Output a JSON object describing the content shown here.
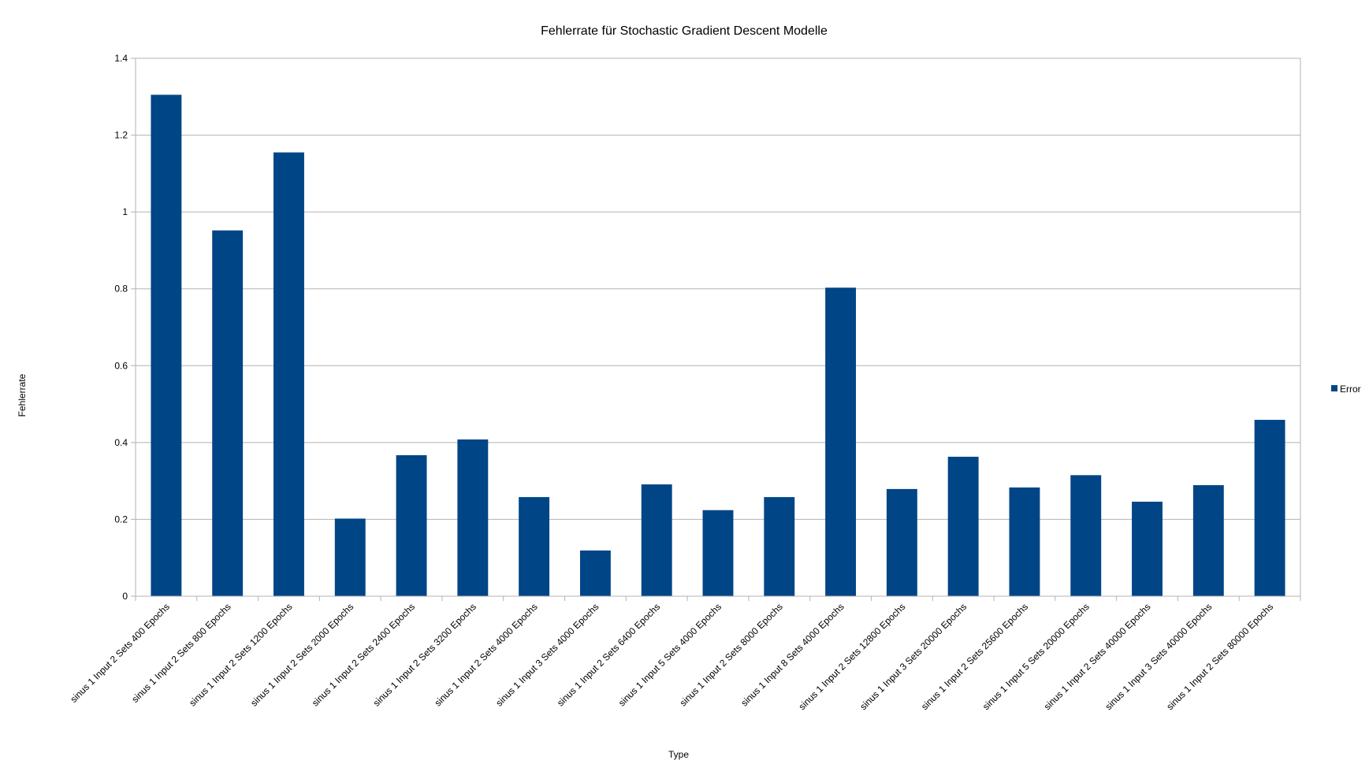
{
  "chart_data": {
    "type": "bar",
    "title": "Fehlerrate für Stochastic Gradient Descent Modelle",
    "xlabel": "Type",
    "ylabel": "Fehlerrate",
    "ylim": [
      0,
      1.4
    ],
    "yticks": [
      "0",
      "0.2",
      "0.4",
      "0.6",
      "0.8",
      "1",
      "1.2",
      "1.4"
    ],
    "grid": true,
    "legend_position": "right",
    "categories": [
      "sinus 1 Input 2 Sets 400 Epochs",
      "sinus 1 Input 2 Sets 800 Epochs",
      "sinus 1 Input 2 Sets 1200 Epochs",
      "sinus 1 Input 2 Sets 2000 Epochs",
      "sinus 1 Input 2 Sets 2400 Epochs",
      "sinus 1 Input 2 Sets 3200 Epochs",
      "sinus 1 Input 2 Sets 4000 Epochs",
      "sinus 1 Input 3 Sets 4000 Epochs",
      "sinus 1 Input 2 Sets 6400 Epochs",
      "sinus 1 Input 5 Sets 4000 Epochs",
      "sinus 1 Input 2 Sets 8000 Epochs",
      "sinus 1 Input 8 Sets 4000 Epochs",
      "sinus 1 Input 2 Sets 12800 Epochs",
      "sinus 1 Input 3 Sets 20000 Epochs",
      "sinus 1 Input 2 Sets 25600 Epochs",
      "sinus 1 Input 5 Sets 20000 Epochs",
      "sinus 1 Input 2 Sets 40000 Epochs",
      "sinus 1 Input 3 Sets 40000 Epochs",
      "sinus 1 Input 2 Sets 80000 Epochs"
    ],
    "series": [
      {
        "name": "Error",
        "color": "#004586",
        "values": [
          1.305,
          0.952,
          1.155,
          0.202,
          0.367,
          0.408,
          0.258,
          0.119,
          0.291,
          0.224,
          0.258,
          0.803,
          0.279,
          0.363,
          0.283,
          0.315,
          0.246,
          0.289,
          0.459
        ]
      }
    ]
  }
}
